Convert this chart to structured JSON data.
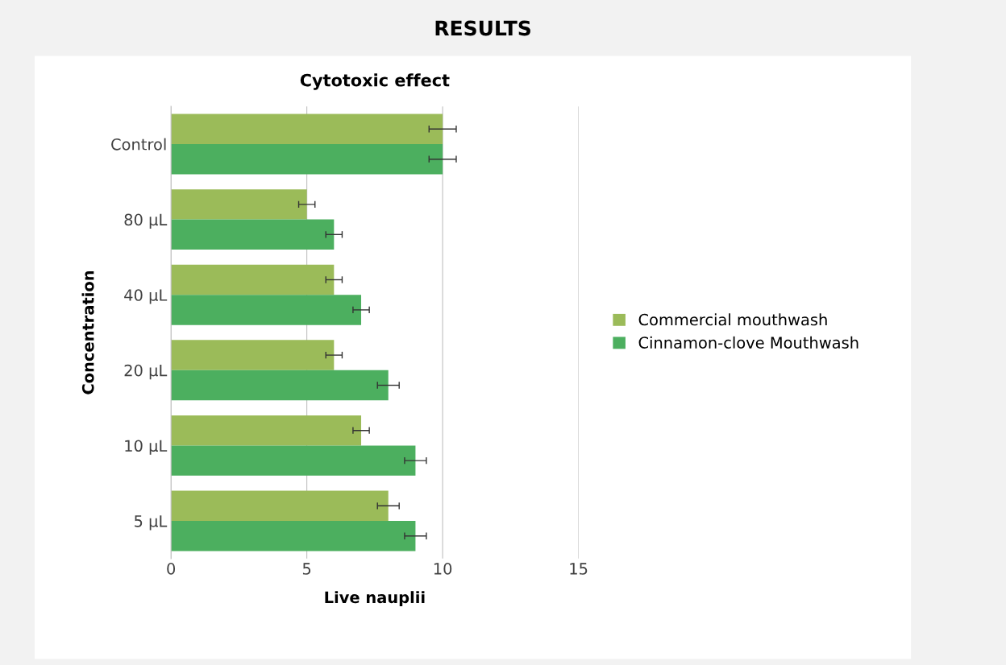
{
  "chart_data": {
    "type": "bar",
    "orientation": "horizontal",
    "title": "RESULTS",
    "subtitle": "Cytotoxic effect",
    "xlabel": "Live nauplii",
    "ylabel": "Concentration",
    "categories": [
      "Control",
      "80 µL",
      "40 µL",
      "20 µL",
      "10 µL",
      "5 µL"
    ],
    "series": [
      {
        "name": "Commercial mouthwash",
        "color": "#9bbb59",
        "values": [
          10,
          5,
          6,
          6,
          7,
          8
        ],
        "errors": [
          0.5,
          0.3,
          0.3,
          0.3,
          0.3,
          0.4
        ]
      },
      {
        "name": "Cinnamon-clove Mouthwash",
        "color": "#4caf5f",
        "values": [
          10,
          6,
          7,
          8,
          9,
          9
        ],
        "errors": [
          0.5,
          0.3,
          0.3,
          0.4,
          0.4,
          0.4
        ]
      }
    ],
    "xlim": [
      0,
      15
    ],
    "xticks": [
      0,
      5,
      10,
      15
    ],
    "grid": "x",
    "legend": "right"
  }
}
